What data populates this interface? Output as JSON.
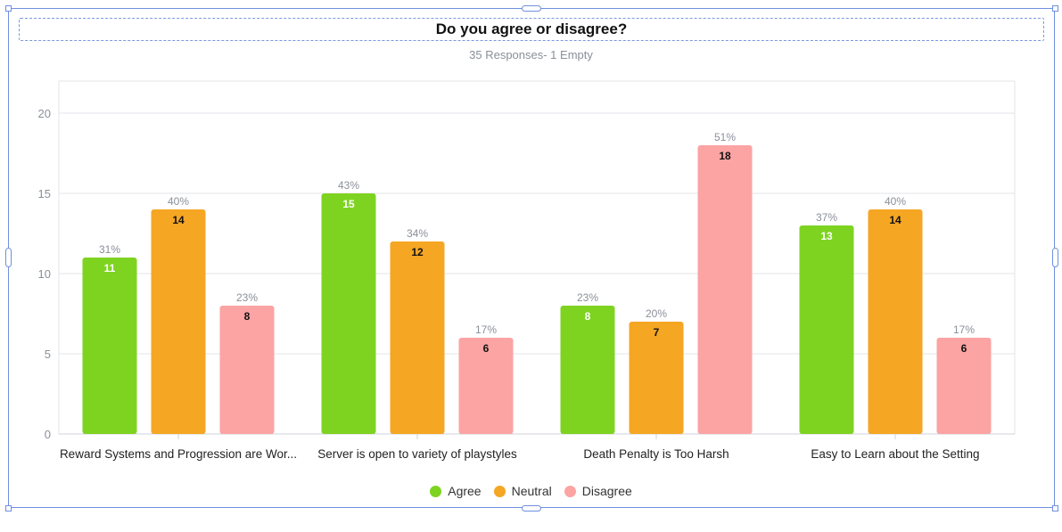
{
  "title": "Do you agree or disagree?",
  "subtitle": "35 Responses- 1 Empty",
  "chart_data": {
    "type": "bar",
    "categories": [
      "Reward Systems and Progression are Wor...",
      "Server is open to variety of playstyles",
      "Death Penalty is Too Harsh",
      "Easy to Learn about the Setting"
    ],
    "series": [
      {
        "name": "Agree",
        "color": "#7ed321",
        "values": [
          11,
          15,
          8,
          13
        ],
        "percents": [
          "31%",
          "43%",
          "23%",
          "37%"
        ],
        "label_color": "#ffffff"
      },
      {
        "name": "Neutral",
        "color": "#f5a623",
        "values": [
          14,
          12,
          7,
          14
        ],
        "percents": [
          "40%",
          "34%",
          "20%",
          "40%"
        ],
        "label_color": "#111111"
      },
      {
        "name": "Disagree",
        "color": "#fca3a3",
        "values": [
          8,
          6,
          18,
          6
        ],
        "percents": [
          "23%",
          "17%",
          "51%",
          "17%"
        ],
        "label_color": "#111111"
      }
    ],
    "y_ticks": [
      0,
      5,
      10,
      15,
      20
    ],
    "ylim": [
      0,
      22
    ],
    "grid": true,
    "legend_position": "bottom-center"
  }
}
